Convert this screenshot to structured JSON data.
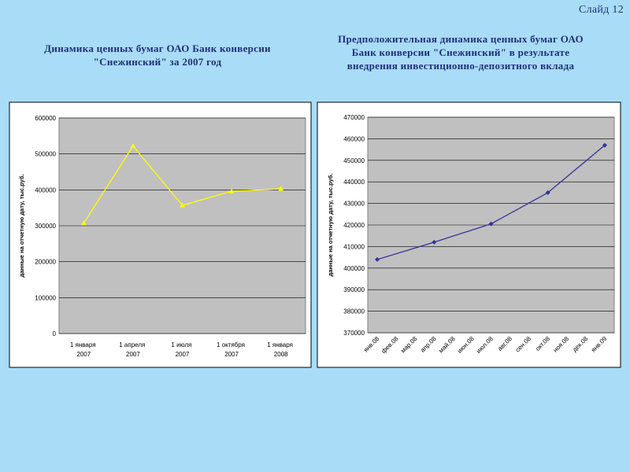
{
  "slide_label": "Слайд 12",
  "chart_data": [
    {
      "type": "line",
      "title": "Динамика ценных бумаг ОАО Банк конверсии \"Снежинский\" за 2007 год",
      "y_label": "данные на отчетную дату, тыс.руб.",
      "categories": [
        "1 января 2007",
        "1 апреля 2007",
        "1 июля 2007",
        "1 октября 2007",
        "1 января 2008"
      ],
      "series": [
        {
          "name": "данные на отчетную дату",
          "color": "#ffff00",
          "marker": "triangle",
          "values": [
            307000,
            522000,
            357000,
            396000,
            403000
          ]
        }
      ],
      "ylim": [
        0,
        600000
      ],
      "yticks": [
        0,
        100000,
        200000,
        300000,
        400000,
        500000,
        600000
      ],
      "grid": true,
      "x_label_rotation": 0
    },
    {
      "type": "line",
      "title": "Предположительная динамика ценных бумаг ОАО Банк конверсии \"Снежинский\" в результате внедрения инвестиционно-депозитного вклада",
      "y_label": "данные на отчетную дату, тыс.руб.",
      "categories": [
        "янв.08",
        "фев.08",
        "мар.08",
        "апр.08",
        "май.08",
        "июн.08",
        "июл.08",
        "авг.08",
        "сен.08",
        "окт.08",
        "ноя.08",
        "дек.08",
        "янв.09"
      ],
      "series": [
        {
          "name": "данные на отчетную дату",
          "color": "#333399",
          "marker": "diamond",
          "values": [
            404000,
            null,
            null,
            412000,
            null,
            null,
            420500,
            null,
            null,
            435000,
            null,
            null,
            457000
          ]
        }
      ],
      "ylim": [
        370000,
        470000
      ],
      "yticks": [
        370000,
        380000,
        390000,
        400000,
        410000,
        420000,
        430000,
        440000,
        450000,
        460000,
        470000
      ],
      "grid": true,
      "span_gaps": true,
      "x_label_rotation": -45
    }
  ]
}
